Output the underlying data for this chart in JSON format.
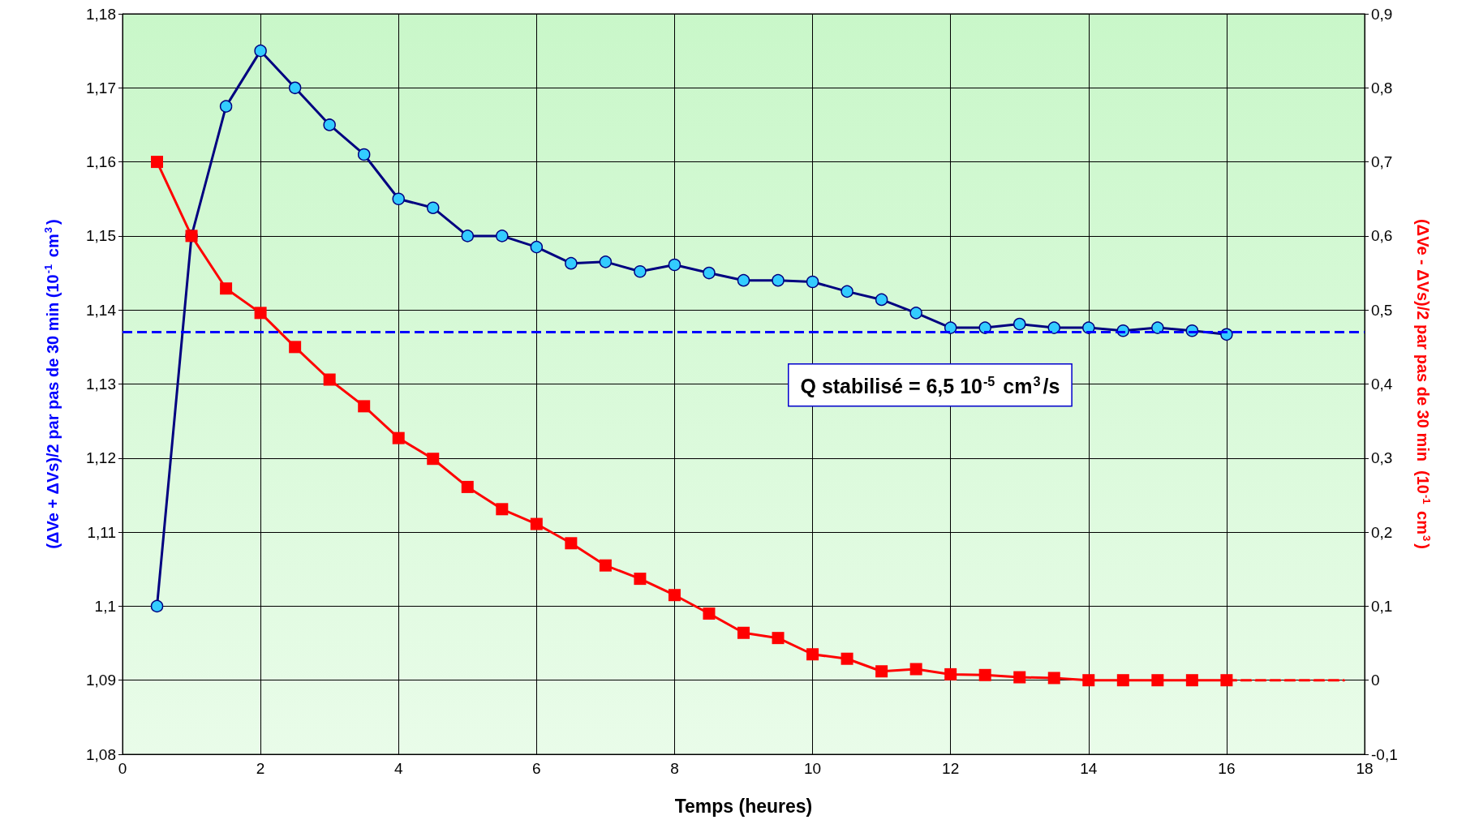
{
  "chart_data": {
    "type": "line",
    "xlabel": "Temps (heures)",
    "ylabel": "(ΔVe + ΔVs)/2 par pas de 30 min (10$^{-1}$ cm$^{3}$)",
    "y2label": "(ΔVe - ΔVs)/2 par pas de 30 min  (10$^{-1}$ cm$^{3}$)",
    "annotations": [
      "Q stabilisé = 6,5 10$^{-5}$ cm$^{3}$/s"
    ],
    "x": [
      0.5,
      1,
      1.5,
      2,
      2.5,
      3,
      3.5,
      4,
      4.5,
      5,
      5.5,
      6,
      6.5,
      7,
      7.5,
      8,
      8.5,
      9,
      9.5,
      10,
      10.5,
      11,
      11.5,
      12,
      12.5,
      13,
      13.5,
      14,
      14.5,
      15,
      15.5,
      16
    ],
    "series": [
      {
        "color": "#000080",
        "marker": "circle",
        "values": [
          1.1,
          1.15,
          1.1675,
          1.175,
          1.17,
          1.165,
          1.161,
          1.155,
          1.1538,
          1.15,
          1.15,
          1.1485,
          1.1463,
          1.1465,
          1.1452,
          1.1461,
          1.145,
          1.144,
          1.144,
          1.1438,
          1.1425,
          1.1414,
          1.1396,
          1.1376,
          1.1376,
          1.1381,
          1.1376,
          1.1376,
          1.1372,
          1.1376,
          1.1372,
          1.1367
        ]
      },
      {
        "color": "#ff0000",
        "marker": "square",
        "axis": "y2",
        "values": [
          0.7,
          0.6,
          0.529,
          0.496,
          0.45,
          0.406,
          0.37,
          0.327,
          0.299,
          0.261,
          0.231,
          0.211,
          0.185,
          0.155,
          0.137,
          0.115,
          0.09,
          0.064,
          0.057,
          0.035,
          0.029,
          0.012,
          0.015,
          0.008,
          0.007,
          0.004,
          0.003,
          0.0,
          0.0,
          0.0,
          0.0,
          0.0
        ]
      },
      {
        "color": "#ff0000",
        "marker": "none",
        "line_style": "dashed",
        "axis": "y2",
        "x": [
          16,
          17.7
        ],
        "values": [
          0,
          0
        ]
      }
    ],
    "xlim": [
      0,
      18
    ],
    "xticks": [
      0,
      2,
      4,
      6,
      8,
      10,
      12,
      14,
      16,
      18
    ],
    "ylim": [
      1.08,
      1.18
    ],
    "yticks": [
      {
        "value": 1.08,
        "label": "1,08"
      },
      {
        "value": 1.09,
        "label": "1,09"
      },
      {
        "value": 1.1,
        "label": "1,1"
      },
      {
        "value": 1.11,
        "label": "1,11"
      },
      {
        "value": 1.12,
        "label": "1,12"
      },
      {
        "value": 1.13,
        "label": "1,13"
      },
      {
        "value": 1.14,
        "label": "1,14"
      },
      {
        "value": 1.15,
        "label": "1,15"
      },
      {
        "value": 1.16,
        "label": "1,16"
      },
      {
        "value": 1.17,
        "label": "1,17"
      },
      {
        "value": 1.18,
        "label": "1,18"
      }
    ],
    "y2lim": [
      -0.1,
      0.9
    ],
    "y2ticks": [
      {
        "value": -0.1,
        "label": "-0,1"
      },
      {
        "value": 0,
        "label": "0"
      },
      {
        "value": 0.1,
        "label": "0,1"
      },
      {
        "value": 0.2,
        "label": "0,2"
      },
      {
        "value": 0.3,
        "label": "0,3"
      },
      {
        "value": 0.4,
        "label": "0,4"
      },
      {
        "value": 0.5,
        "label": "0,5"
      },
      {
        "value": 0.6,
        "label": "0,6"
      },
      {
        "value": 0.7,
        "label": "0,7"
      },
      {
        "value": 0.8,
        "label": "0,8"
      },
      {
        "value": 0.9,
        "label": "0,9"
      }
    ],
    "ref_lines": [
      {
        "axis": "y",
        "value": 1.137,
        "color": "#0000ff",
        "line_style": "dashed"
      }
    ],
    "grid": true,
    "line_style": "solid"
  }
}
